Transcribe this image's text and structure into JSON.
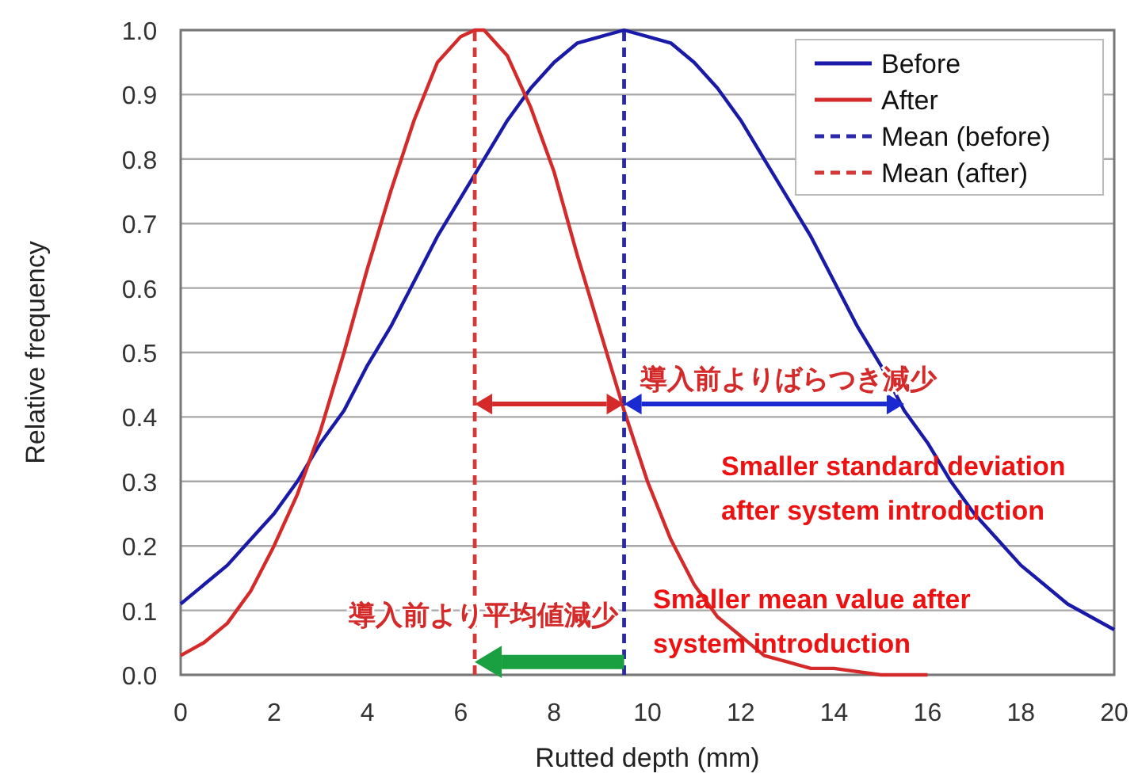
{
  "chart_data": {
    "type": "line",
    "xlabel": "Rutted depth (mm)",
    "ylabel": "Relative frequency",
    "xlim": [
      0,
      20
    ],
    "xticks": [
      0,
      2,
      4,
      6,
      8,
      10,
      12,
      14,
      16,
      18,
      20
    ],
    "ylim": [
      0,
      1
    ],
    "yticks": [
      {
        "value": 0,
        "label": "0.0"
      },
      {
        "value": 0.1,
        "label": "0.1"
      },
      {
        "value": 0.2,
        "label": "0.2"
      },
      {
        "value": 0.3,
        "label": "0.3"
      },
      {
        "value": 0.4,
        "label": "0.4"
      },
      {
        "value": 0.5,
        "label": "0.5"
      },
      {
        "value": 0.6,
        "label": "0.6"
      },
      {
        "value": 0.7,
        "label": "0.7"
      },
      {
        "value": 0.8,
        "label": "0.8"
      },
      {
        "value": 0.9,
        "label": "0.9"
      },
      {
        "value": 1,
        "label": "1.0"
      }
    ],
    "grid": "y",
    "legend": "top right",
    "marker": "none",
    "series": [
      {
        "name": "Before",
        "color": "#1a1aa8",
        "line_style": "solid",
        "x": [
          0,
          0.5,
          1,
          1.5,
          2,
          2.5,
          3,
          3.5,
          4,
          4.5,
          5,
          5.5,
          6,
          6.5,
          7,
          7.5,
          8,
          8.5,
          9,
          9.5,
          10,
          10.5,
          11,
          11.5,
          12,
          12.5,
          13,
          13.5,
          14,
          14.5,
          15,
          15.5,
          16,
          16.5,
          17,
          17.5,
          18,
          18.5,
          19,
          19.5,
          20
        ],
        "values": [
          0.11,
          0.14,
          0.17,
          0.21,
          0.25,
          0.3,
          0.36,
          0.41,
          0.48,
          0.54,
          0.61,
          0.68,
          0.74,
          0.8,
          0.86,
          0.91,
          0.95,
          0.98,
          0.99,
          1,
          0.99,
          0.98,
          0.95,
          0.91,
          0.86,
          0.8,
          0.74,
          0.68,
          0.61,
          0.54,
          0.48,
          0.41,
          0.36,
          0.3,
          0.25,
          0.21,
          0.17,
          0.14,
          0.11,
          0.09,
          0.07
        ]
      },
      {
        "name": "After",
        "color": "#d42a2a",
        "line_style": "solid",
        "x": [
          0,
          0.5,
          1,
          1.5,
          2,
          2.5,
          3,
          3.5,
          4,
          4.5,
          5,
          5.5,
          6,
          6.3,
          6.5,
          7,
          7.5,
          8,
          8.5,
          9,
          9.5,
          10,
          10.5,
          11,
          11.5,
          12,
          12.5,
          13,
          13.5,
          14,
          15,
          16
        ],
        "values": [
          0.03,
          0.05,
          0.08,
          0.13,
          0.2,
          0.28,
          0.38,
          0.5,
          0.63,
          0.75,
          0.86,
          0.95,
          0.99,
          1,
          1,
          0.96,
          0.88,
          0.78,
          0.65,
          0.53,
          0.41,
          0.3,
          0.21,
          0.14,
          0.09,
          0.06,
          0.03,
          0.02,
          0.01,
          0.01,
          0,
          0
        ]
      },
      {
        "name": "Mean (before)",
        "color": "#2a2aa8",
        "line_style": "dashed",
        "x": [
          9.5,
          9.5
        ],
        "values": [
          0,
          1
        ]
      },
      {
        "name": "Mean (after)",
        "color": "#d43a3a",
        "line_style": "dashed",
        "x": [
          6.3,
          6.3
        ],
        "values": [
          0,
          1
        ]
      }
    ],
    "annotations": [
      {
        "text": "導入前よりばらつき減少",
        "x": 15.5,
        "y": 0.42
      },
      {
        "text": "導入前より平均値減少",
        "x": 6.3,
        "y": 0.02
      },
      "Smaller standard deviation\nafter system introduction",
      "Smaller mean value after\nsystem introduction"
    ]
  }
}
